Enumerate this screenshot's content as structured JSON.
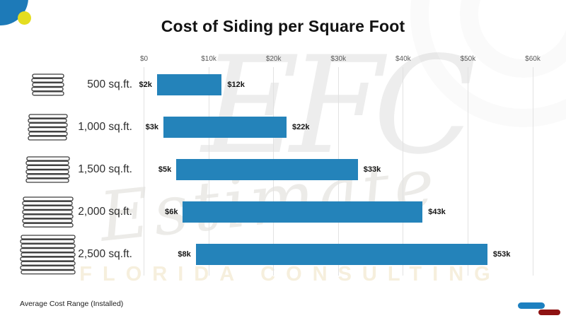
{
  "title": "Cost of Siding per Square Foot",
  "watermark": {
    "monogram": "EFC",
    "script": "Estimate",
    "banner": "FLORIDA CONSULTING"
  },
  "footer": {
    "legend_label": "Average Cost Range (Installed)"
  },
  "colors": {
    "bar": "#2483ba",
    "accent_blue_circle": "#1d7ab8",
    "accent_yellow_circle": "#e4dd20",
    "legend_pill_blue": "#1d80c0",
    "legend_pill_red": "#8e1212",
    "gridline": "#e2e2e2"
  },
  "chart_data": {
    "type": "bar",
    "orientation": "horizontal",
    "title": "Cost of Siding per Square Foot",
    "categories": [
      "500 sq.ft.",
      "1,000 sq.ft.",
      "1,500 sq.ft.",
      "2,000 sq.ft.",
      "2,500 sq.ft."
    ],
    "series": [
      {
        "name": "min_cost_usd",
        "values": [
          2000,
          3000,
          5000,
          6000,
          8000
        ]
      },
      {
        "name": "max_cost_usd",
        "values": [
          12000,
          22000,
          33000,
          43000,
          53000
        ]
      }
    ],
    "bar_labels": [
      [
        "$2k",
        "$12k"
      ],
      [
        "$3k",
        "$22k"
      ],
      [
        "$5k",
        "$33k"
      ],
      [
        "$6k",
        "$43k"
      ],
      [
        "$8k",
        "$53k"
      ]
    ],
    "x_ticks": [
      "$0",
      "$10k",
      "$20k",
      "$30k",
      "$40k",
      "$50k",
      "$60k"
    ],
    "x_tick_values": [
      0,
      10000,
      20000,
      30000,
      40000,
      50000,
      60000
    ],
    "xlim": [
      0,
      60000
    ],
    "grid": true,
    "legend_position": "bottom-left",
    "legend": "Average Cost Range (Installed)",
    "row_icon": "siding-stack",
    "row_icon_slats": [
      5,
      6,
      6,
      7,
      9
    ]
  }
}
